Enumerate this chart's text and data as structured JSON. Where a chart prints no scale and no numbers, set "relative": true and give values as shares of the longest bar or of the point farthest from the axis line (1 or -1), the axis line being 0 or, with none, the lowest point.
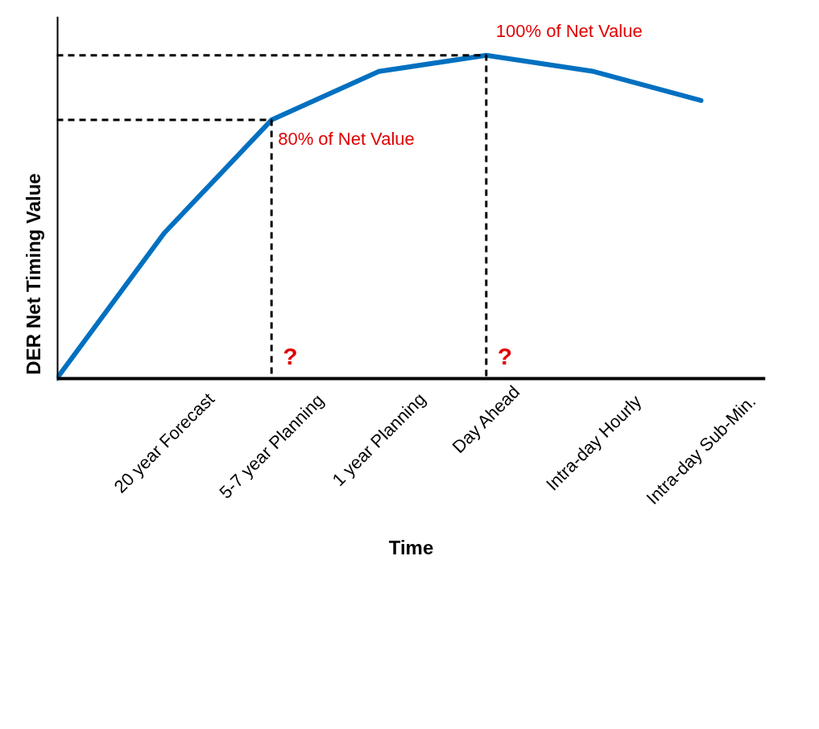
{
  "chart_data": {
    "type": "line",
    "relative": true,
    "xlabel": "Time",
    "ylabel": "DER Net Timing Value",
    "categories": [
      null,
      "20 year Forecast",
      "5-7 year Planning",
      "1 year Planning",
      "Day Ahead",
      "Intra-day Hourly",
      "Intra-day Sub-Min."
    ],
    "series": [
      {
        "color": "#0070c0",
        "values": [
          0,
          0.45,
          0.8,
          0.95,
          1,
          0.95,
          0.86
        ]
      }
    ],
    "annotations": [
      {
        "text": "80% of Net Value",
        "x": "5-7 year Planning",
        "y": 0.8
      },
      {
        "text": "100% of Net Value",
        "x": "Day Ahead",
        "y": 1
      },
      "?",
      "?"
    ],
    "grid": false
  }
}
